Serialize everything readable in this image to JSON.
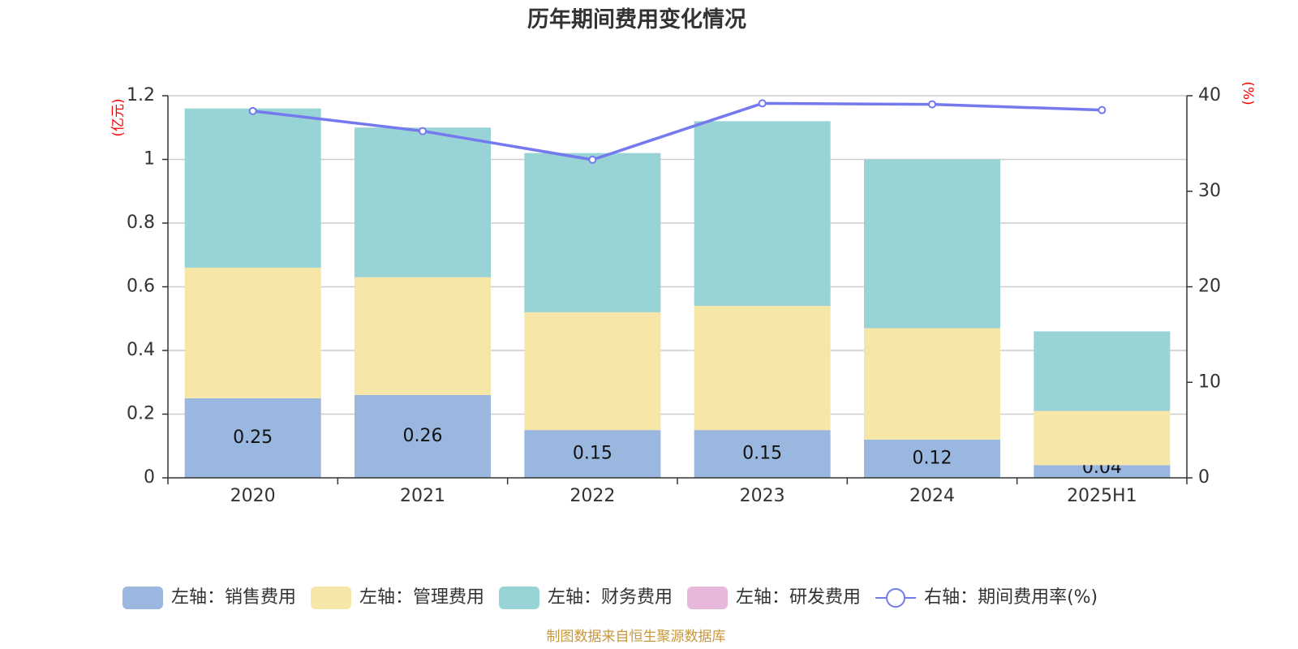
{
  "chart_data": {
    "type": "bar",
    "title": "历年期间费用变化情况",
    "categories": [
      "2020",
      "2021",
      "2022",
      "2023",
      "2024",
      "2025H1"
    ],
    "left_axis": {
      "unit": "(亿元)",
      "ylim": [
        0,
        1.2
      ],
      "ticks": [
        "0",
        "0.2",
        "0.4",
        "0.6",
        "0.8",
        "1",
        "1.2"
      ]
    },
    "right_axis": {
      "unit": "(%)",
      "ylim": [
        0,
        40
      ],
      "ticks": [
        "0",
        "10",
        "20",
        "30",
        "40"
      ]
    },
    "stacked": true,
    "series": [
      {
        "name": "左轴：销售费用",
        "color": "#9ab7e0",
        "values": [
          0.25,
          0.26,
          0.15,
          0.15,
          0.12,
          0.04
        ],
        "labels": [
          "0.25",
          "0.26",
          "0.15",
          "0.15",
          "0.12",
          "0.04"
        ]
      },
      {
        "name": "左轴：管理费用",
        "color": "#f6e6a7",
        "values": [
          0.41,
          0.37,
          0.37,
          0.39,
          0.35,
          0.17
        ]
      },
      {
        "name": "左轴：财务费用",
        "color": "#98d3d5",
        "values": [
          0.5,
          0.47,
          0.5,
          0.58,
          0.53,
          0.25
        ]
      },
      {
        "name": "左轴：研发费用",
        "color": "#e8b8da",
        "values": [
          0,
          0,
          0,
          0,
          0,
          0
        ]
      }
    ],
    "line_series": {
      "name": "右轴：期间费用率(%)",
      "color": "#7479ee",
      "axis": "right",
      "values": [
        38.4,
        36.3,
        33.3,
        39.2,
        39.1,
        38.5
      ]
    },
    "grid": true,
    "legend_position": "bottom"
  },
  "source_text": "制图数据来自恒生聚源数据库",
  "colors": {
    "axis_unit": "#ff0000",
    "source": "#c8973b",
    "grid": "#cccccc",
    "axis": "#333333"
  }
}
